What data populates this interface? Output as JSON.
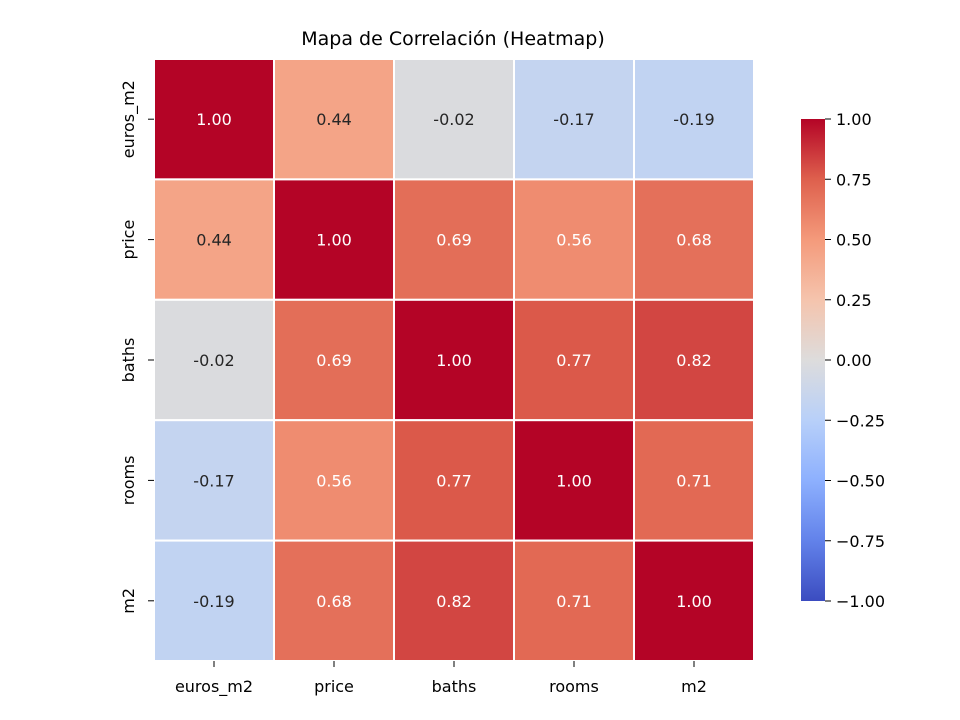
{
  "chart_data": {
    "type": "heatmap",
    "title": "Mapa de Correlación (Heatmap)",
    "xlabel": "",
    "ylabel": "",
    "x_categories": [
      "euros_m2",
      "price",
      "baths",
      "rooms",
      "m2"
    ],
    "y_categories": [
      "euros_m2",
      "price",
      "baths",
      "rooms",
      "m2"
    ],
    "values": [
      [
        1.0,
        0.44,
        -0.02,
        -0.17,
        -0.19
      ],
      [
        0.44,
        1.0,
        0.69,
        0.56,
        0.68
      ],
      [
        -0.02,
        0.69,
        1.0,
        0.77,
        0.82
      ],
      [
        -0.17,
        0.56,
        0.77,
        1.0,
        0.71
      ],
      [
        -0.19,
        0.68,
        0.82,
        0.71,
        1.0
      ]
    ],
    "value_labels": [
      [
        "1.00",
        "0.44",
        "-0.02",
        "-0.17",
        "-0.19"
      ],
      [
        "0.44",
        "1.00",
        "0.69",
        "0.56",
        "0.68"
      ],
      [
        "-0.02",
        "0.69",
        "1.00",
        "0.77",
        "0.82"
      ],
      [
        "-0.17",
        "0.56",
        "0.77",
        "1.00",
        "0.71"
      ],
      [
        "-0.19",
        "0.68",
        "0.82",
        "0.71",
        "1.00"
      ]
    ],
    "colormap": "coolwarm",
    "vmin": -1.0,
    "vmax": 1.0,
    "colorbar_ticks": [
      1.0,
      0.75,
      0.5,
      0.25,
      0.0,
      -0.25,
      -0.5,
      -0.75,
      -1.0
    ],
    "colorbar_tick_labels": [
      "1.00",
      "0.75",
      "0.50",
      "0.25",
      "0.00",
      "−0.25",
      "−0.50",
      "−0.75",
      "−1.00"
    ],
    "colors": {
      "cmap_low": "#3b4cc0",
      "cmap_mid": "#dddcdc",
      "cmap_high": "#b40426",
      "text_light": "#ffffff",
      "text_dark": "#262626",
      "cell_border": "#ffffff"
    }
  }
}
